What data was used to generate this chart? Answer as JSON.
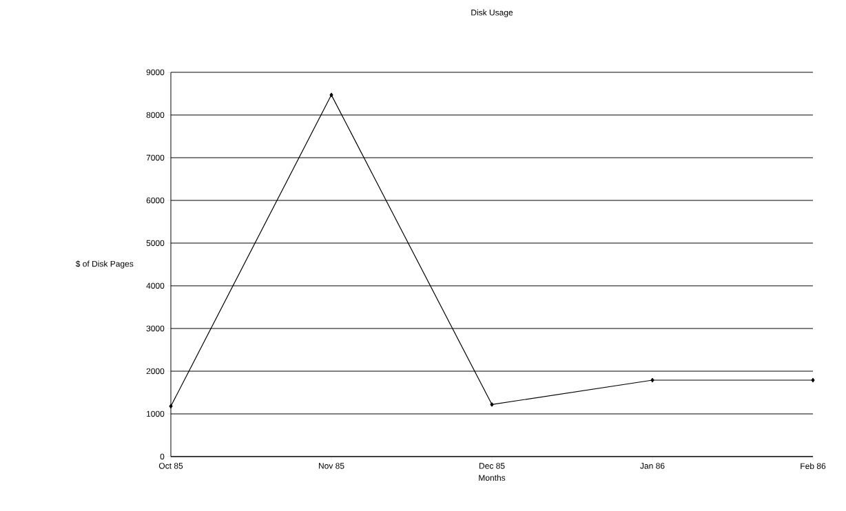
{
  "chart_data": {
    "type": "line",
    "title": "Disk Usage",
    "xlabel": "Months",
    "ylabel": "$ of Disk Pages",
    "categories": [
      "Oct 85",
      "Nov 85",
      "Dec 85",
      "Jan 86",
      "Feb 86"
    ],
    "values": [
      1180,
      8470,
      1220,
      1790,
      1790
    ],
    "color": "#000000",
    "ylim": [
      0,
      9000
    ],
    "yticks": [
      0,
      1000,
      2000,
      3000,
      4000,
      5000,
      6000,
      7000,
      8000,
      9000
    ],
    "grid": "y",
    "marker": "diamond",
    "line_style": "solid"
  }
}
